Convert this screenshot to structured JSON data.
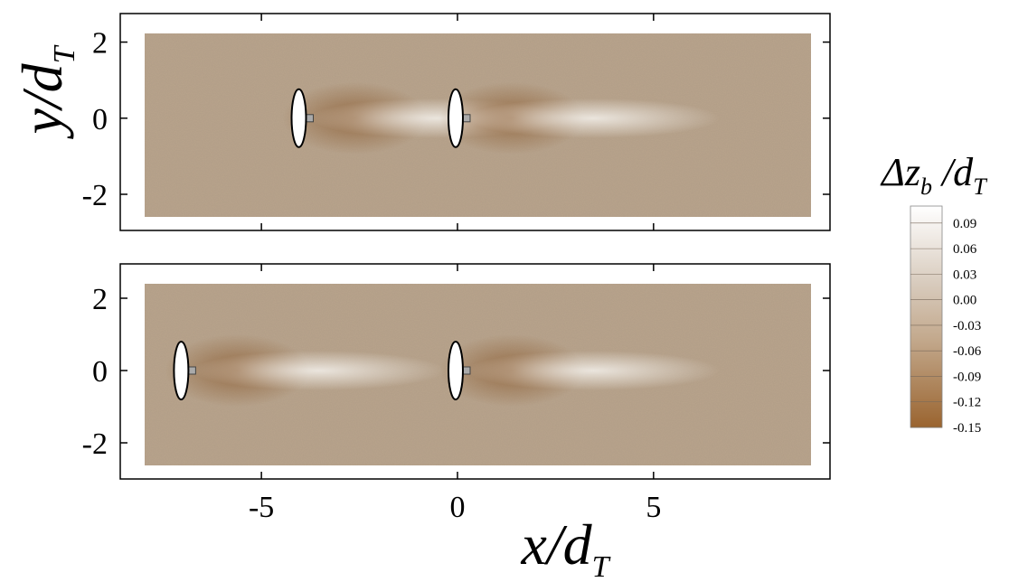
{
  "chart_data": {
    "type": "heatmap",
    "xlabel": [
      "x/d",
      "T"
    ],
    "ylabel": [
      "y/d",
      "T"
    ],
    "xlim": [
      -8.6,
      9.5
    ],
    "xticks": [
      -5,
      0,
      5
    ],
    "panels": [
      {
        "ylim": [
          -2.95,
          2.75
        ],
        "yticks": [
          -2,
          0,
          2
        ],
        "turbines": [
          {
            "x": -4,
            "y": 0
          },
          {
            "x": 0,
            "y": 0
          }
        ]
      },
      {
        "ylim": [
          -3.0,
          2.95
        ],
        "yticks": [
          -2,
          0,
          2
        ],
        "turbines": [
          {
            "x": -7,
            "y": 0
          },
          {
            "x": 0,
            "y": 0
          }
        ]
      }
    ],
    "colorbar": {
      "title": [
        "Δz",
        "b",
        " /d",
        "T"
      ],
      "lim": [
        -0.15,
        0.11
      ],
      "ticks": [
        0.09,
        0.06,
        0.03,
        {
          "value": 0,
          "label": "0.00"
        },
        -0.03,
        -0.06,
        -0.09,
        -0.12,
        -0.15
      ]
    }
  }
}
